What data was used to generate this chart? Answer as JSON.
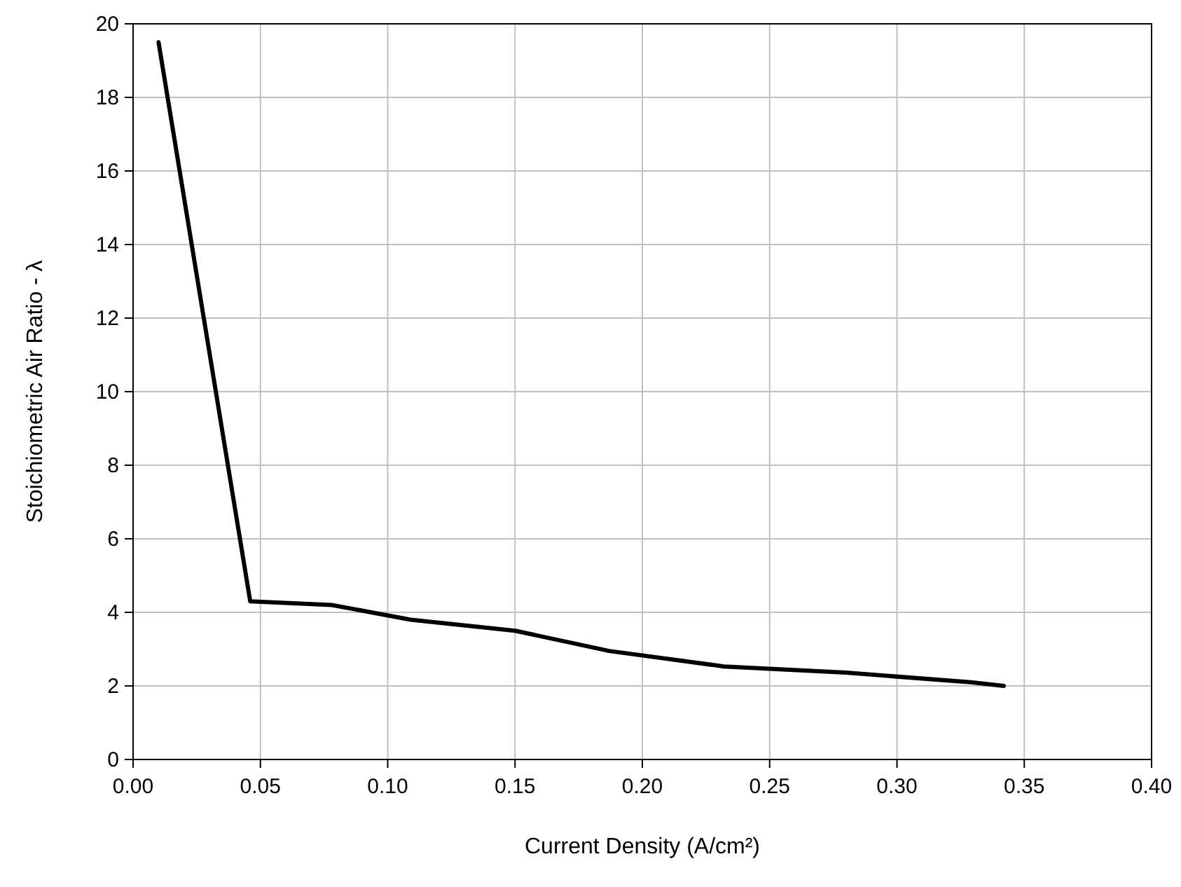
{
  "chart_data": {
    "type": "line",
    "xlabel": "Current Density (A/cm²)",
    "ylabel": "Stoichiometric Air Ratio - λ",
    "x": [
      0.01,
      0.046,
      0.078,
      0.109,
      0.15,
      0.187,
      0.232,
      0.28,
      0.329,
      0.342
    ],
    "series": [
      {
        "color": "#000000",
        "values": [
          19.5,
          4.3,
          4.2,
          3.8,
          3.5,
          2.95,
          2.53,
          2.36,
          2.1,
          2.0
        ]
      }
    ],
    "xlim": [
      0,
      0.4
    ],
    "xticks": [
      {
        "value": 0,
        "label": "0.00"
      },
      {
        "value": 0.05,
        "label": "0.05"
      },
      {
        "value": 0.1,
        "label": "0.10"
      },
      {
        "value": 0.15,
        "label": "0.15"
      },
      {
        "value": 0.2,
        "label": "0.20"
      },
      {
        "value": 0.25,
        "label": "0.25"
      },
      {
        "value": 0.3,
        "label": "0.30"
      },
      {
        "value": 0.35,
        "label": "0.35"
      },
      {
        "value": 0.4,
        "label": "0.40"
      }
    ],
    "ylim": [
      0,
      20
    ],
    "yticks": [
      0,
      2,
      4,
      6,
      8,
      10,
      12,
      14,
      16,
      18,
      20
    ],
    "grid": true,
    "marker": "none",
    "line_style": "solid"
  }
}
